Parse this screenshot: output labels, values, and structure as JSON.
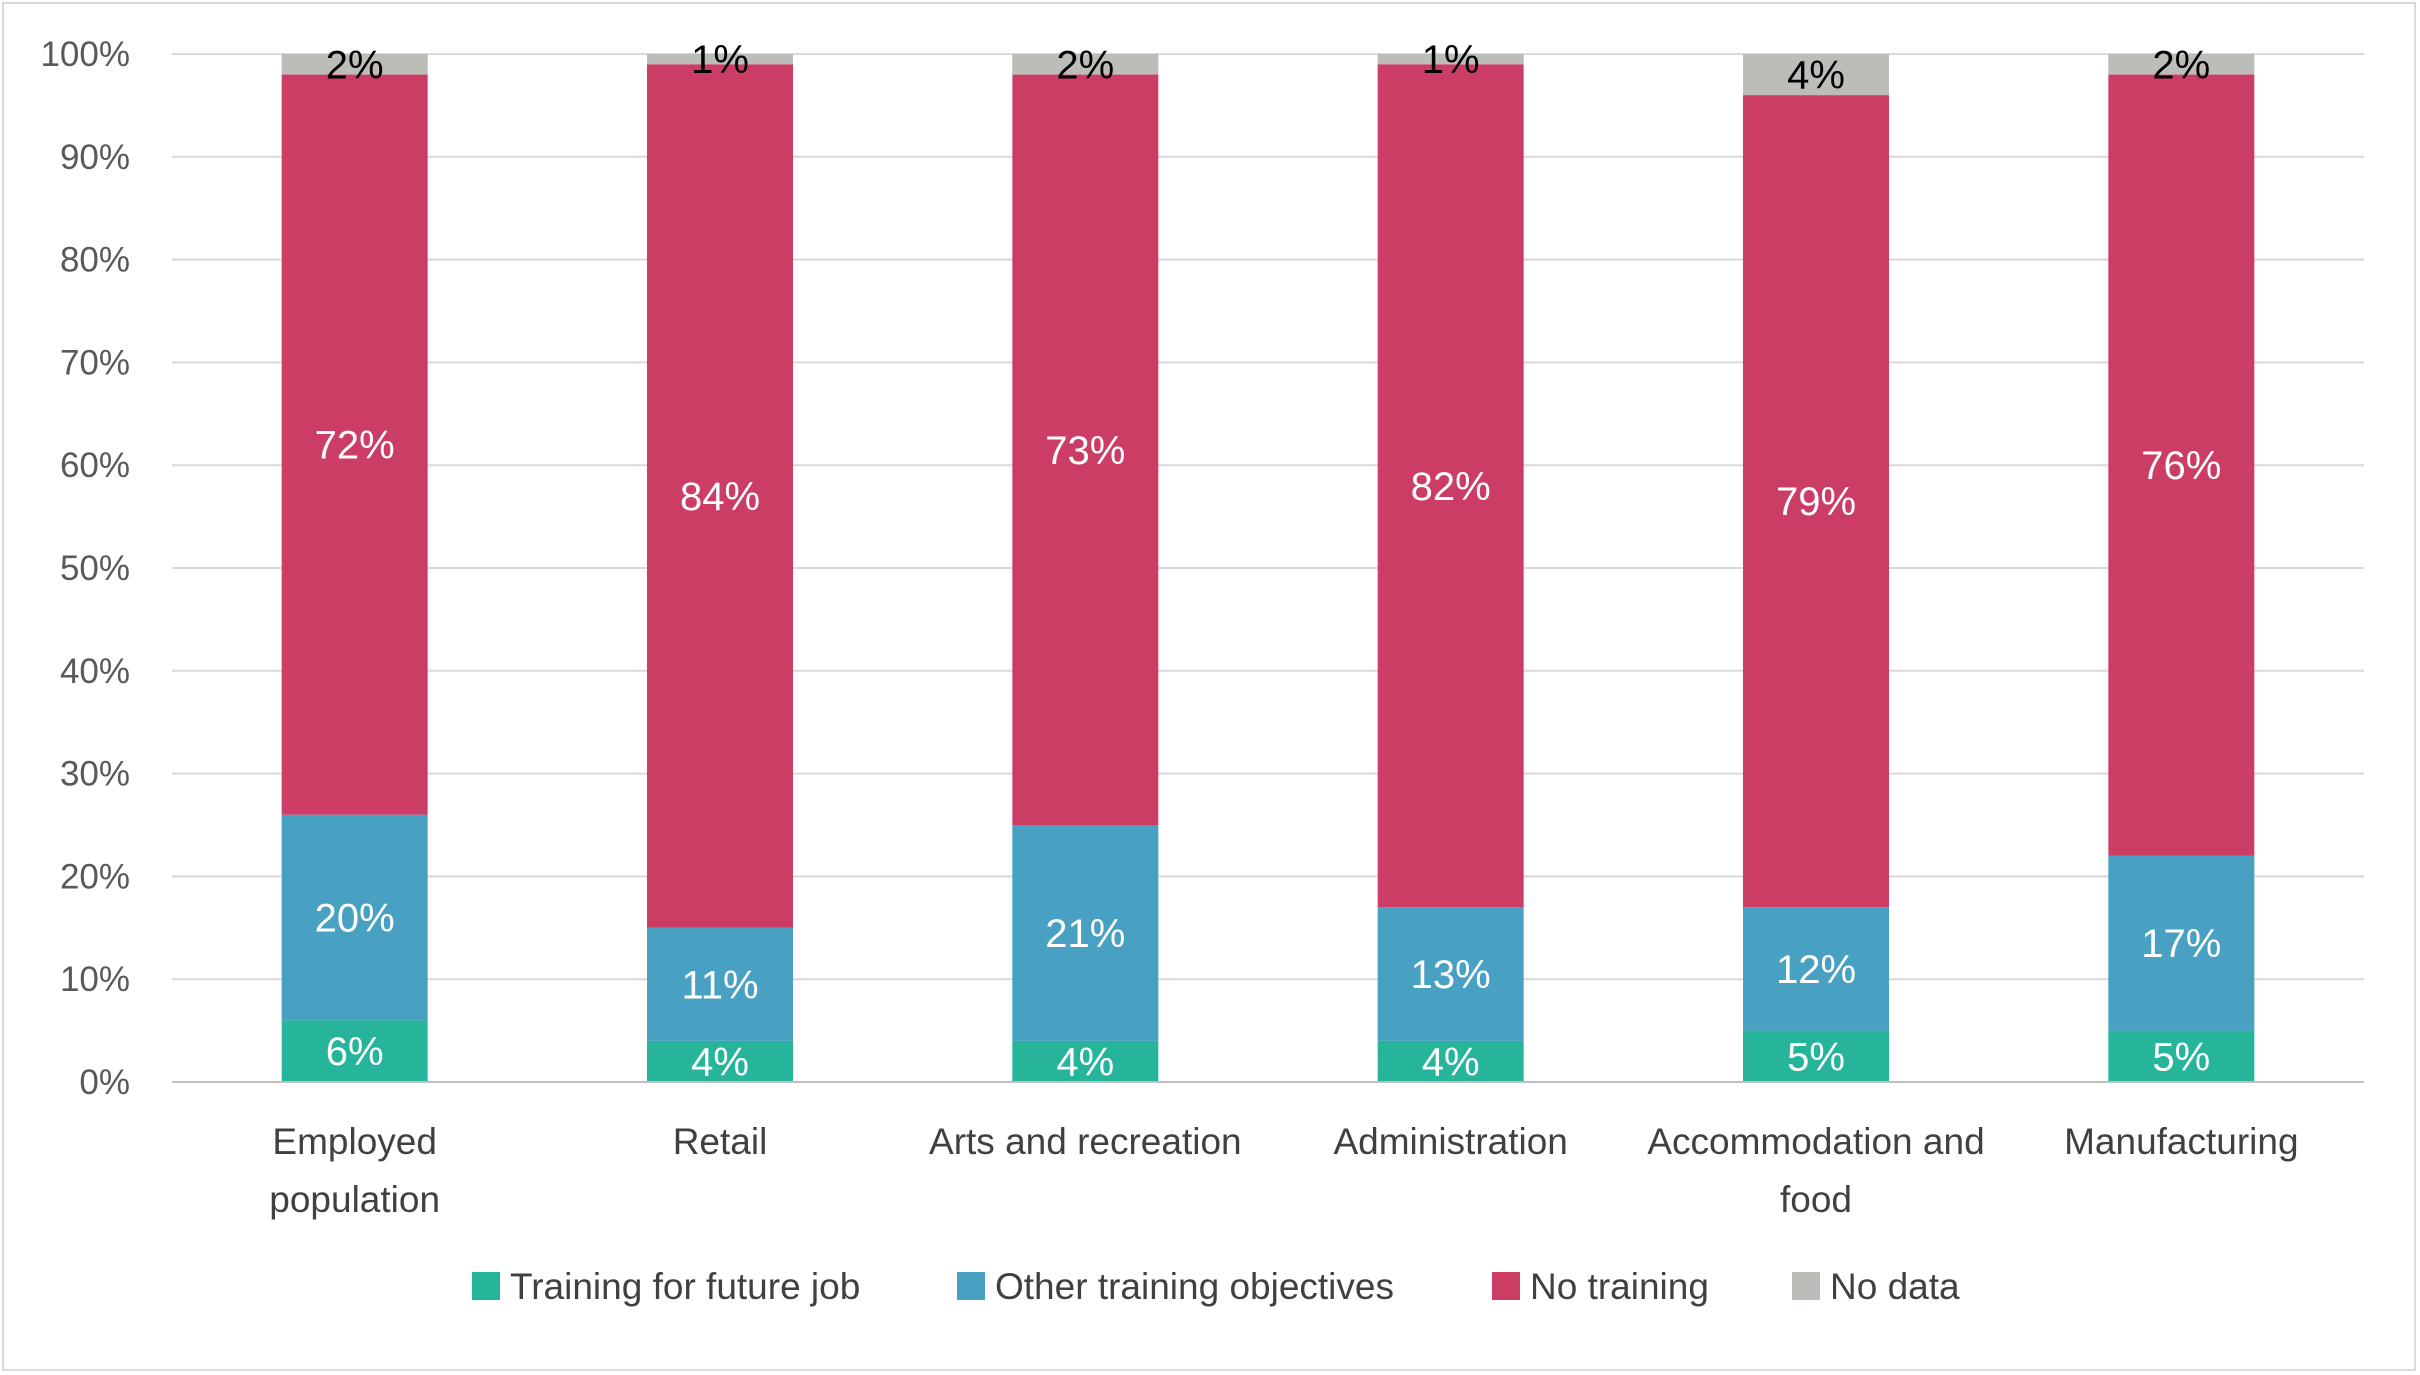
{
  "chart_data": {
    "type": "bar",
    "stacked": true,
    "categories": [
      [
        "Employed",
        "population"
      ],
      [
        "Retail"
      ],
      [
        "Arts and recreation"
      ],
      [
        "Administration"
      ],
      [
        "Accommodation and",
        "food"
      ],
      [
        "Manufacturing"
      ]
    ],
    "series": [
      {
        "name": "Training for future job",
        "color": "#26b59a",
        "values": [
          6,
          4,
          4,
          4,
          5,
          5
        ]
      },
      {
        "name": "Other training objectives",
        "color": "#48a1c3",
        "values": [
          20,
          11,
          21,
          13,
          12,
          17
        ]
      },
      {
        "name": "No training",
        "color": "#cc3d66",
        "values": [
          72,
          84,
          73,
          82,
          79,
          76
        ]
      },
      {
        "name": "No data",
        "color": "#bcbcb8",
        "values": [
          2,
          1,
          2,
          1,
          4,
          2
        ]
      }
    ],
    "label_colors": [
      "#ffffff",
      "#ffffff",
      "#ffffff",
      "#000000"
    ],
    "value_suffix": "%",
    "ylim": [
      0,
      100
    ],
    "yticks": [
      "0%",
      "10%",
      "20%",
      "30%",
      "40%",
      "50%",
      "60%",
      "70%",
      "80%",
      "90%",
      "100%"
    ],
    "grid": true,
    "legend_position": "bottom"
  }
}
